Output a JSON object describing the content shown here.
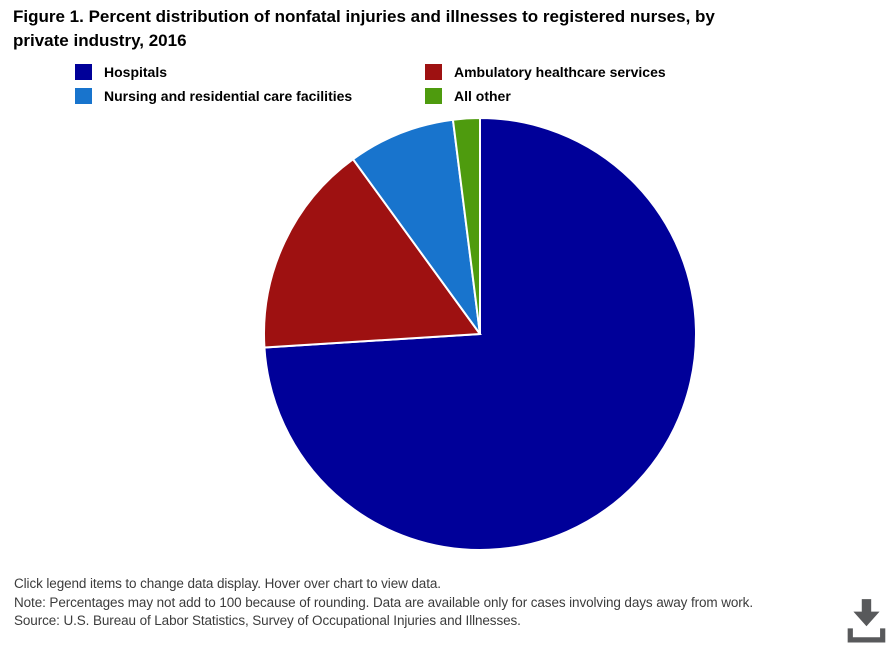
{
  "title": "Figure 1. Percent distribution of nonfatal injuries and illnesses to registered nurses, by private industry, 2016",
  "legend": {
    "items": [
      {
        "label": "Hospitals",
        "color": "#000099"
      },
      {
        "label": "Ambulatory healthcare services",
        "color": "#9e1111"
      },
      {
        "label": "Nursing and residential care facilities",
        "color": "#1874cd"
      },
      {
        "label": "All other",
        "color": "#4e9b0e"
      }
    ]
  },
  "chart_data": {
    "type": "pie",
    "title": "Figure 1. Percent distribution of nonfatal injuries and illnesses to registered nurses, by private industry, 2016",
    "categories": [
      "Hospitals",
      "Ambulatory healthcare services",
      "Nursing and residential care facilities",
      "All other"
    ],
    "values": [
      74,
      16,
      8,
      2
    ],
    "unit": "percent",
    "colors": [
      "#000099",
      "#9e1111",
      "#1874cd",
      "#4e9b0e"
    ],
    "start_angle_deg": 0,
    "direction": "clockwise",
    "slice_separator_color": "#ffffff",
    "legend_position": "top",
    "data_labels": false
  },
  "footer": {
    "hint": "Click legend items to change data display. Hover over chart to view data.",
    "note": "Note: Percentages may not add to 100 because of rounding. Data are available only for cases involving days away from work.",
    "source": "Source: U.S. Bureau of Labor Statistics, Survey of Occupational Injuries and Illnesses."
  },
  "download": {
    "icon": "download-icon",
    "color": "#58595b"
  }
}
